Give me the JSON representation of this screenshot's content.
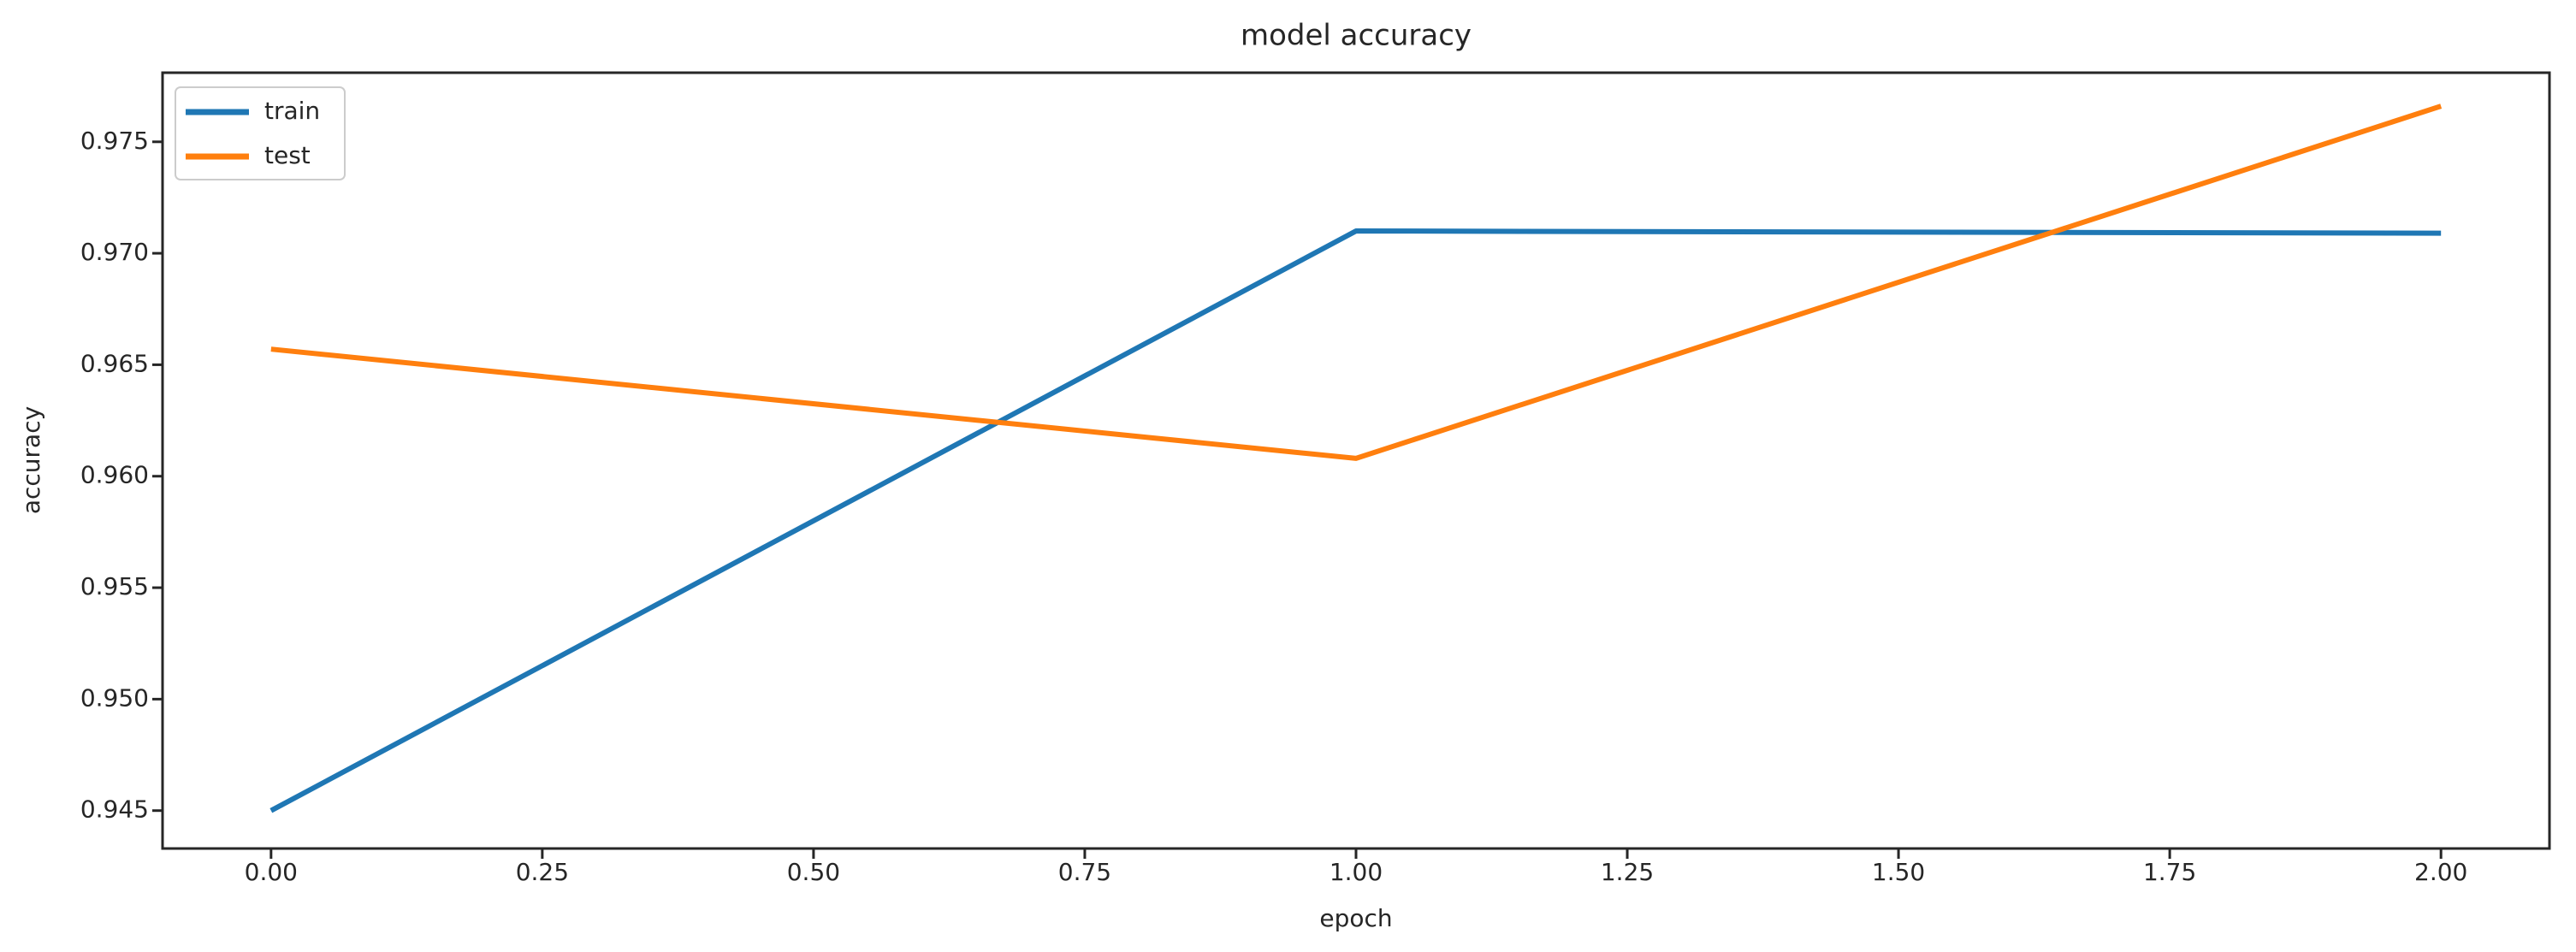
{
  "chart_data": {
    "type": "line",
    "title": "model accuracy",
    "xlabel": "epoch",
    "ylabel": "accuracy",
    "x": [
      0,
      1,
      2
    ],
    "series": [
      {
        "name": "train",
        "color": "#1f77b4",
        "values": [
          0.945,
          0.971,
          0.9709
        ]
      },
      {
        "name": "test",
        "color": "#ff7f0e",
        "values": [
          0.9657,
          0.9608,
          0.9766
        ]
      }
    ],
    "xlim": [
      -0.1,
      2.1
    ],
    "ylim": [
      0.9433,
      0.9781
    ],
    "xticks": [
      0.0,
      0.25,
      0.5,
      0.75,
      1.0,
      1.25,
      1.5,
      1.75,
      2.0
    ],
    "xtick_labels": [
      "0.00",
      "0.25",
      "0.50",
      "0.75",
      "1.00",
      "1.25",
      "1.50",
      "1.75",
      "2.00"
    ],
    "yticks": [
      0.945,
      0.95,
      0.955,
      0.96,
      0.965,
      0.97,
      0.975
    ],
    "ytick_labels": [
      "0.945",
      "0.950",
      "0.955",
      "0.960",
      "0.965",
      "0.970",
      "0.975"
    ],
    "legend": {
      "position": "upper left",
      "entries": [
        "train",
        "test"
      ]
    },
    "grid": false,
    "background_color": "#ffffff",
    "spine_color": "#262626",
    "text_color": "#262626",
    "legend_border_color": "#cccccc"
  }
}
